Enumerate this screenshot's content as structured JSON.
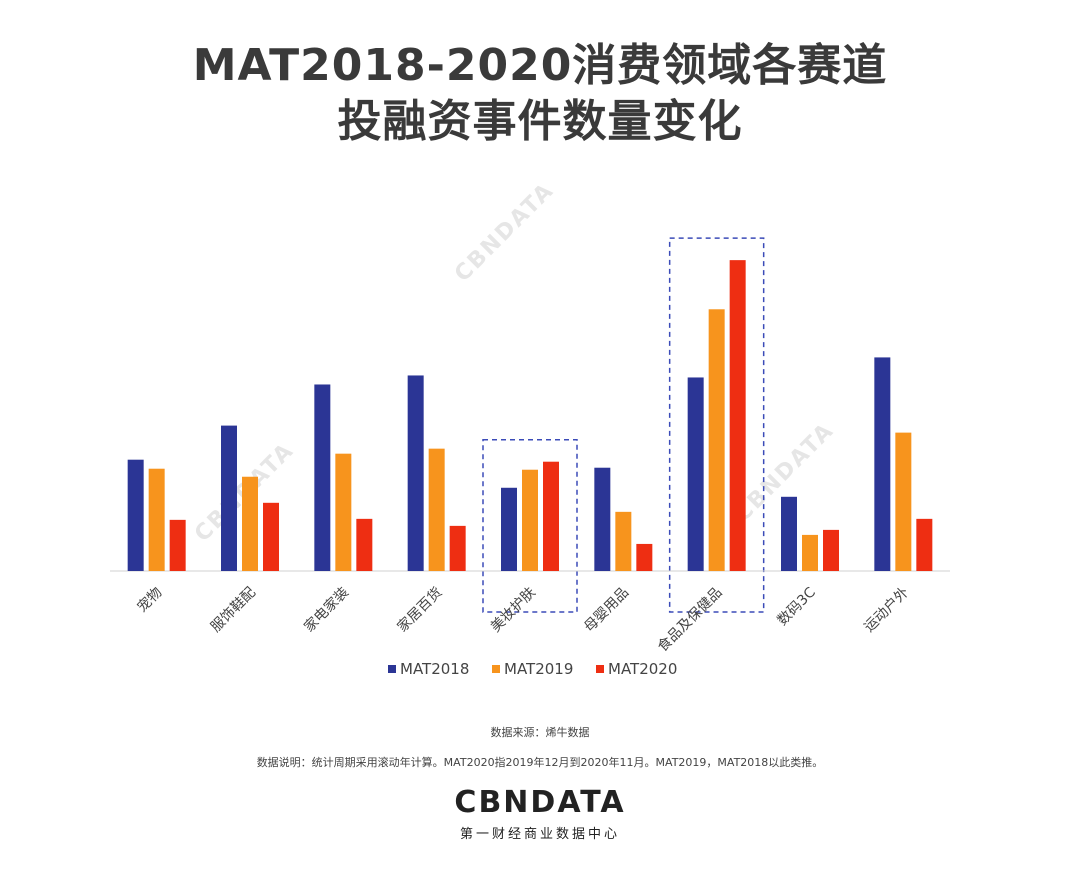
{
  "title_line1": "MAT2018-2020消费领域各赛道",
  "title_line2": "投融资事件数量变化",
  "source": "数据来源：烯牛数据",
  "note": "数据说明：统计周期采用滚动年计算。MAT2020指2019年12月到2020年11月。MAT2019，MAT2018以此类推。",
  "logo": {
    "word": "CBNDATA",
    "subtitle": "第一财经商业数据中心"
  },
  "watermark": "CBNDATA",
  "highlighted_categories": [
    "美妆护肤",
    "食品及保健品"
  ],
  "colors": {
    "MAT2018": "#2b3595",
    "MAT2019": "#f7941d",
    "MAT2020": "#ee2e12",
    "highlight_box": "#3b4bb8"
  },
  "chart_data": {
    "type": "bar",
    "categories": [
      "宠物",
      "服饰鞋配",
      "家电家装",
      "家居百货",
      "美妆护肤",
      "母婴用品",
      "食品及保健品",
      "数码3C",
      "运动户外"
    ],
    "series": [
      {
        "name": "MAT2018",
        "values": [
          111,
          145,
          186,
          195,
          83,
          103,
          193,
          74,
          213
        ]
      },
      {
        "name": "MAT2019",
        "values": [
          102,
          94,
          117,
          122,
          101,
          59,
          261,
          36,
          138
        ]
      },
      {
        "name": "MAT2020",
        "values": [
          51,
          68,
          52,
          45,
          109,
          27,
          310,
          41,
          52
        ]
      }
    ],
    "ylim": [
      0,
      360
    ],
    "legend_position": "bottom",
    "grid": false
  }
}
